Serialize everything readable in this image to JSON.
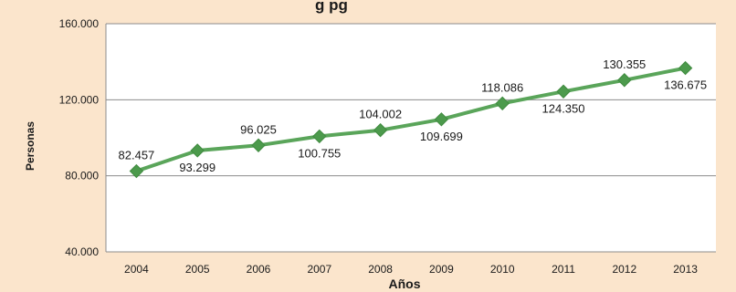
{
  "chart_data": {
    "type": "line",
    "title": "g  pg",
    "xlabel": "Años",
    "ylabel": "Personas",
    "categories": [
      "2004",
      "2005",
      "2006",
      "2007",
      "2008",
      "2009",
      "2010",
      "2011",
      "2012",
      "2013"
    ],
    "series": [
      {
        "values": [
          82457,
          93299,
          96025,
          100755,
          104002,
          109699,
          118086,
          124350,
          130355,
          136675
        ],
        "labels": [
          "82.457",
          "93.299",
          "96.025",
          "100.755",
          "104.002",
          "109.699",
          "118.086",
          "124.350",
          "130.355",
          "136.675"
        ]
      }
    ],
    "ylim": [
      40000,
      160000
    ],
    "yticks": [
      40000,
      80000,
      120000,
      160000
    ],
    "ytick_labels": [
      "40.000",
      "80.000",
      "120.000",
      "160.000"
    ],
    "grid": true,
    "colors": {
      "background": "#fbe5cc",
      "plot_area": "#ffffff",
      "line": "#5aa55a",
      "marker": "#4c9a4c",
      "grid": "#8c8c8c"
    }
  }
}
